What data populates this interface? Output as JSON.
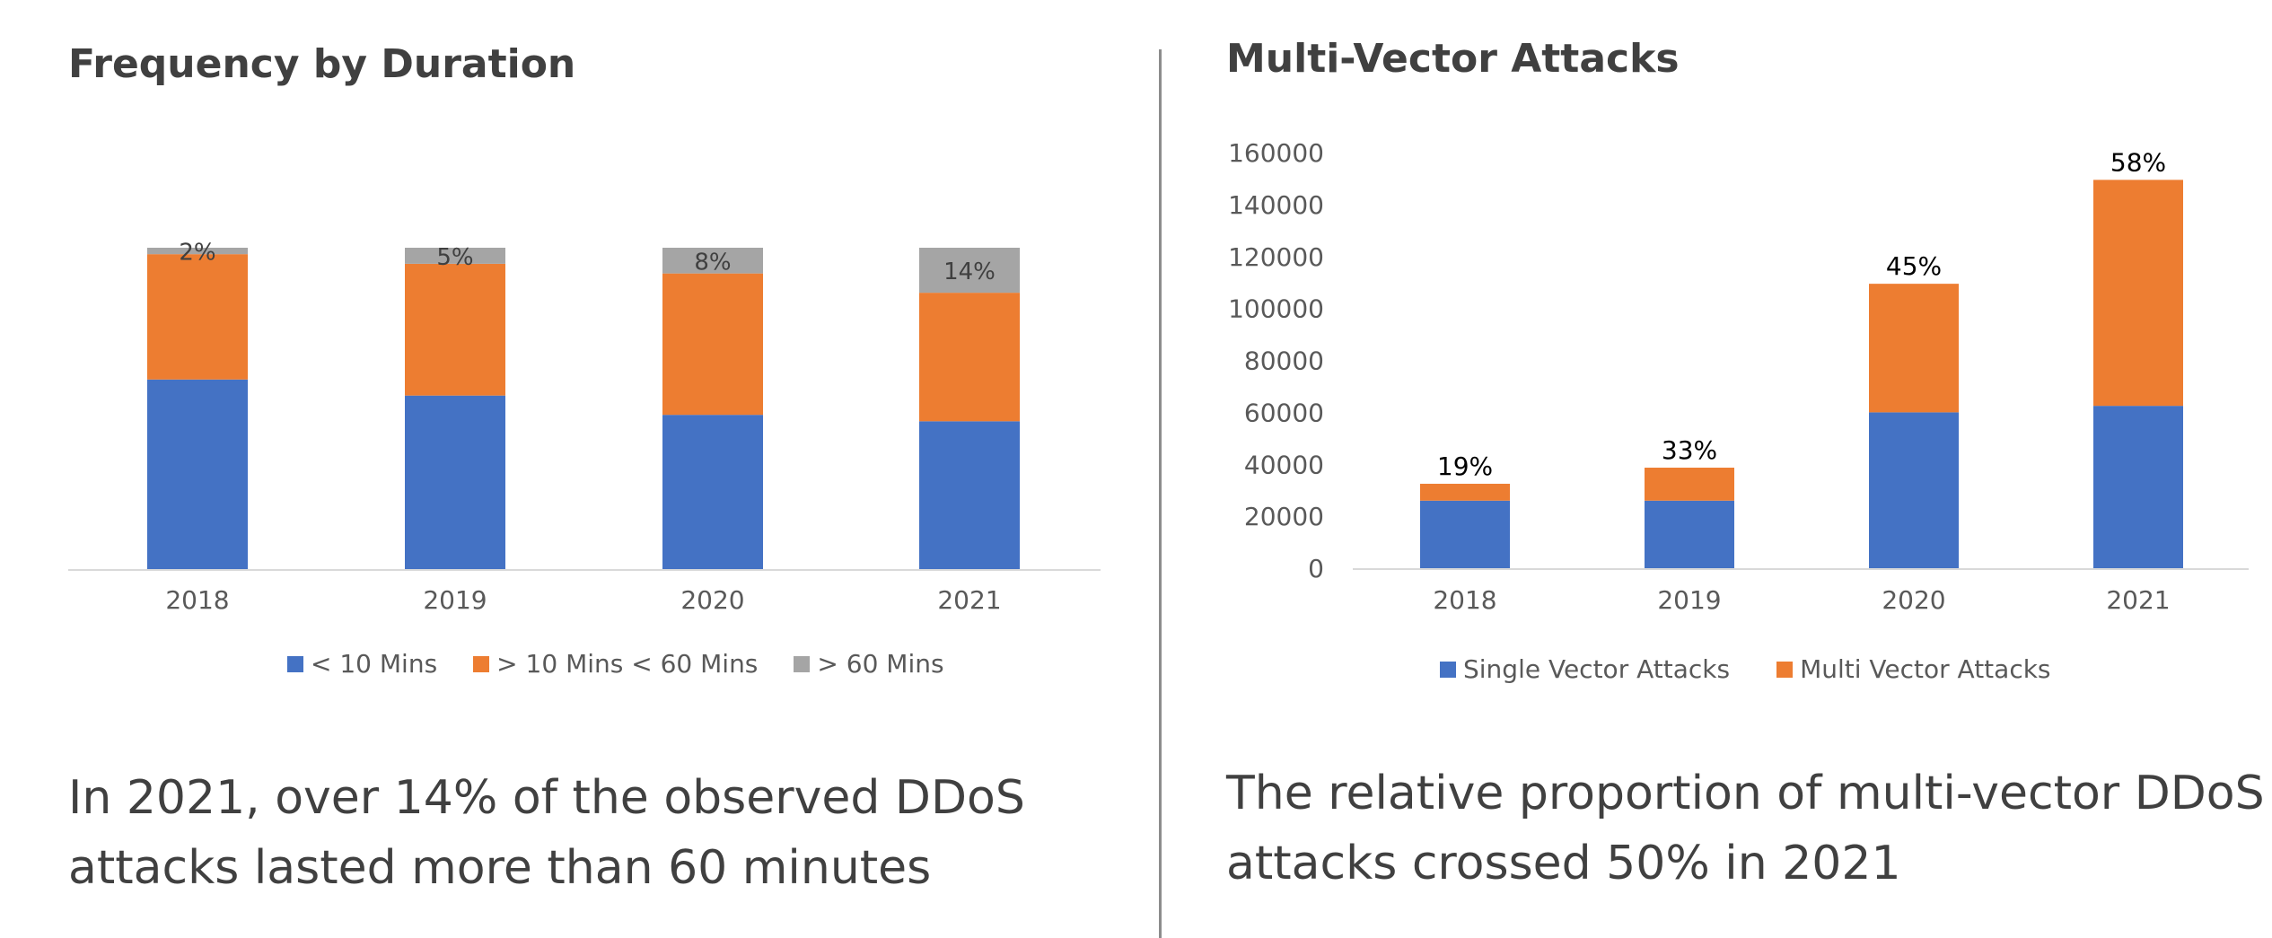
{
  "left_panel": {
    "title": "Frequency by Duration",
    "caption_line1": "In 2021, over 14% of the observed DDoS",
    "caption_line2": "attacks lasted more than 60 minutes"
  },
  "right_panel": {
    "title": "Multi-Vector Attacks",
    "caption_line1": "The relative proportion of multi-vector DDoS",
    "caption_line2": "attacks crossed 50% in 2021"
  },
  "colors": {
    "blue": "#4472C4",
    "orange": "#ED7D31",
    "gray": "#A5A5A5"
  },
  "chart_data": [
    {
      "type": "bar",
      "stacked": true,
      "percent_stacked": true,
      "title": "Frequency by Duration",
      "categories": [
        "2018",
        "2019",
        "2020",
        "2021"
      ],
      "series": [
        {
          "name": "< 10 Mins",
          "values": [
            59,
            54,
            48,
            46
          ]
        },
        {
          "name": "> 10 Mins < 60 Mins",
          "values": [
            39,
            41,
            44,
            40
          ]
        },
        {
          "name": "> 60 Mins",
          "values": [
            2,
            5,
            8,
            14
          ]
        }
      ],
      "data_labels": [
        "2%",
        "5%",
        "8%",
        "14%"
      ],
      "legend": "bottom",
      "grid": false
    },
    {
      "type": "bar",
      "stacked": true,
      "title": "Multi-Vector Attacks",
      "categories": [
        "2018",
        "2019",
        "2020",
        "2021"
      ],
      "series": [
        {
          "name": "Single Vector Attacks",
          "values": [
            26000,
            26000,
            60000,
            62500
          ]
        },
        {
          "name": "Multi Vector Attacks",
          "values": [
            6500,
            12700,
            49500,
            87000
          ]
        }
      ],
      "data_labels": [
        "19%",
        "33%",
        "45%",
        "58%"
      ],
      "ylim": [
        0,
        160000
      ],
      "yticks": [
        "0",
        "20000",
        "40000",
        "60000",
        "80000",
        "100000",
        "120000",
        "140000",
        "160000"
      ],
      "legend": "bottom",
      "grid": false
    }
  ]
}
